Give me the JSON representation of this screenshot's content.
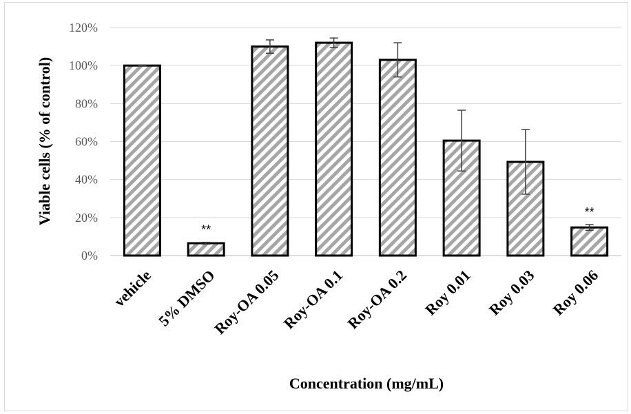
{
  "chart_data": {
    "type": "bar",
    "title": "",
    "xlabel": "Concentration (mg/mL)",
    "ylabel": "Viable cells (% of control)",
    "categories": [
      "vehicle",
      "5% DMSO",
      "Roy-OA 0.05",
      "Roy-OA 0.1",
      "Roy-OA 0.2",
      "Roy 0.01",
      "Roy 0.03",
      "Roy 0.06"
    ],
    "values": [
      100,
      6.5,
      110,
      112,
      103,
      60.5,
      49.3,
      14.8
    ],
    "error": [
      0.3,
      0.5,
      3.5,
      2.5,
      9,
      16,
      17,
      1.5
    ],
    "annotations": [
      "",
      "**",
      "",
      "",
      "",
      "",
      "",
      "**"
    ],
    "yticks": [
      0,
      20,
      40,
      60,
      80,
      100,
      120
    ],
    "ytick_labels": [
      "0%",
      "20%",
      "40%",
      "60%",
      "80%",
      "100%",
      "120%"
    ],
    "ylim": [
      0,
      120
    ],
    "grid": true,
    "colors": {
      "bar_stroke": "#000000",
      "hatch": "#a6a6a6",
      "grid": "#d9d9d9",
      "axis": "#bfbfbf",
      "error": "#404040"
    }
  }
}
